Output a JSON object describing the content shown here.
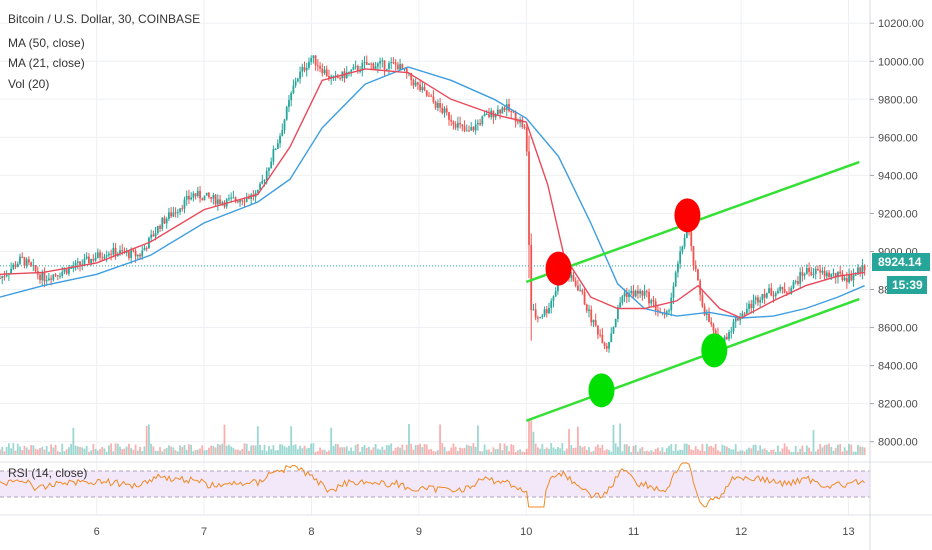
{
  "chart_data": {
    "type": "candlestick",
    "title": "Bitcoin / U.S. Dollar, 30, COINBASE",
    "legend": [
      "MA (50, close)",
      "MA (21, close)",
      "Vol (20)"
    ],
    "rsi_label": "RSI (14, close)",
    "x_ticks": [
      "6",
      "7",
      "8",
      "9",
      "10",
      "11",
      "12",
      "13"
    ],
    "x_range": [
      5.1,
      13.2
    ],
    "y_ticks": [
      8000,
      8200,
      8400,
      8600,
      8800,
      9000,
      9200,
      9400,
      9600,
      9800,
      10000,
      10200
    ],
    "y_tick_labels": [
      "8000.00",
      "8200.00",
      "8400.00",
      "8600.00",
      "8800.00",
      "9000.00",
      "9200.00",
      "9400.00",
      "9600.00",
      "9800.00",
      "10000.00",
      "10200.00"
    ],
    "ylim": [
      7930,
      10280
    ],
    "last_price": "8924.14",
    "countdown": "15:39",
    "price_path": [
      [
        5.1,
        8860
      ],
      [
        5.3,
        8960
      ],
      [
        5.5,
        8860
      ],
      [
        5.8,
        8920
      ],
      [
        6.1,
        9000
      ],
      [
        6.4,
        8980
      ],
      [
        6.6,
        9150
      ],
      [
        6.9,
        9300
      ],
      [
        7.2,
        9260
      ],
      [
        7.5,
        9300
      ],
      [
        7.7,
        9600
      ],
      [
        7.85,
        9900
      ],
      [
        8.0,
        10020
      ],
      [
        8.2,
        9900
      ],
      [
        8.5,
        9980
      ],
      [
        8.8,
        9980
      ],
      [
        9.0,
        9860
      ],
      [
        9.2,
        9750
      ],
      [
        9.45,
        9620
      ],
      [
        9.6,
        9700
      ],
      [
        9.8,
        9760
      ],
      [
        9.95,
        9680
      ],
      [
        10.0,
        9620
      ],
      [
        10.04,
        8700
      ],
      [
        10.1,
        8650
      ],
      [
        10.2,
        8700
      ],
      [
        10.35,
        8900
      ],
      [
        10.5,
        8800
      ],
      [
        10.6,
        8650
      ],
      [
        10.75,
        8500
      ],
      [
        10.9,
        8780
      ],
      [
        11.1,
        8780
      ],
      [
        11.3,
        8640
      ],
      [
        11.5,
        9150
      ],
      [
        11.55,
        8950
      ],
      [
        11.65,
        8700
      ],
      [
        11.8,
        8500
      ],
      [
        11.95,
        8640
      ],
      [
        12.2,
        8780
      ],
      [
        12.45,
        8800
      ],
      [
        12.6,
        8900
      ],
      [
        12.8,
        8880
      ],
      [
        13.0,
        8860
      ],
      [
        13.15,
        8920
      ]
    ],
    "ma21_path": [
      [
        5.1,
        8880
      ],
      [
        5.5,
        8890
      ],
      [
        6.0,
        8940
      ],
      [
        6.5,
        9050
      ],
      [
        7.0,
        9220
      ],
      [
        7.5,
        9300
      ],
      [
        7.8,
        9550
      ],
      [
        8.1,
        9900
      ],
      [
        8.5,
        9960
      ],
      [
        8.9,
        9940
      ],
      [
        9.3,
        9800
      ],
      [
        9.7,
        9720
      ],
      [
        10.0,
        9680
      ],
      [
        10.2,
        9350
      ],
      [
        10.35,
        8980
      ],
      [
        10.6,
        8760
      ],
      [
        10.85,
        8700
      ],
      [
        11.1,
        8700
      ],
      [
        11.4,
        8740
      ],
      [
        11.6,
        8820
      ],
      [
        11.8,
        8700
      ],
      [
        12.0,
        8650
      ],
      [
        12.3,
        8740
      ],
      [
        12.6,
        8820
      ],
      [
        12.9,
        8870
      ],
      [
        13.15,
        8890
      ]
    ],
    "ma50_path": [
      [
        5.1,
        8760
      ],
      [
        5.5,
        8820
      ],
      [
        6.0,
        8880
      ],
      [
        6.5,
        8980
      ],
      [
        7.0,
        9150
      ],
      [
        7.5,
        9260
      ],
      [
        7.8,
        9380
      ],
      [
        8.1,
        9650
      ],
      [
        8.5,
        9880
      ],
      [
        8.9,
        9970
      ],
      [
        9.3,
        9900
      ],
      [
        9.7,
        9800
      ],
      [
        10.0,
        9700
      ],
      [
        10.3,
        9500
      ],
      [
        10.6,
        9150
      ],
      [
        10.85,
        8830
      ],
      [
        11.1,
        8700
      ],
      [
        11.4,
        8660
      ],
      [
        11.7,
        8680
      ],
      [
        12.0,
        8650
      ],
      [
        12.3,
        8660
      ],
      [
        12.6,
        8700
      ],
      [
        12.9,
        8760
      ],
      [
        13.15,
        8820
      ]
    ],
    "channel_upper": [
      [
        10.0,
        8840
      ],
      [
        13.1,
        9470
      ]
    ],
    "channel_lower": [
      [
        10.0,
        8110
      ],
      [
        13.1,
        8750
      ]
    ],
    "markers": [
      {
        "x": 10.3,
        "y": 8910,
        "color": "#ff0000"
      },
      {
        "x": 10.7,
        "y": 8270,
        "color": "#00e000"
      },
      {
        "x": 11.5,
        "y": 9190,
        "color": "#ff0000"
      },
      {
        "x": 11.75,
        "y": 8480,
        "color": "#00e000"
      }
    ],
    "colors": {
      "up": "#26a69a",
      "down": "#ef5350",
      "ma21": "#e8495a",
      "ma50": "#3d9ee0",
      "channel": "#33e033",
      "last_price": "#26a69a",
      "rsi": "#f08a24",
      "rsi_band": "#f3e8fa"
    }
  }
}
